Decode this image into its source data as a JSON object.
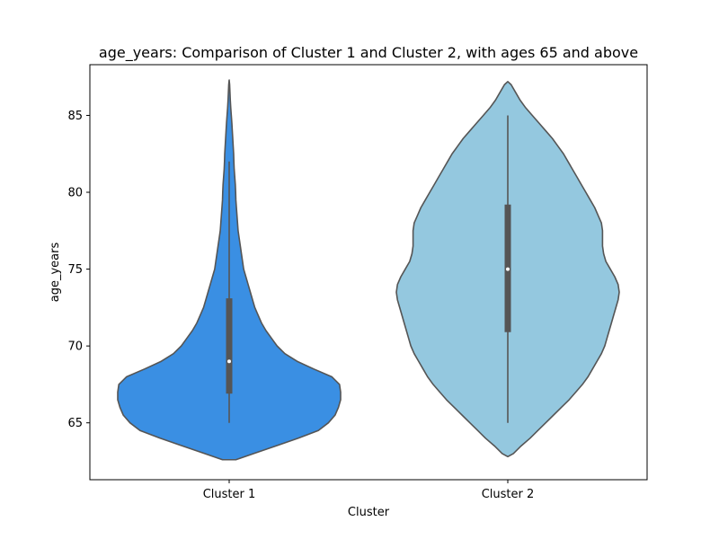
{
  "chart_data": {
    "type": "violin",
    "title": "age_years: Comparison of Cluster 1 and Cluster 2, with ages 65 and above",
    "xlabel": "Cluster",
    "ylabel": "age_years",
    "categories": [
      "Cluster 1",
      "Cluster 2"
    ],
    "ylim": [
      61.3,
      88.3
    ],
    "yticks": [
      65,
      70,
      75,
      80,
      85
    ],
    "grid": false,
    "colors": [
      "#3a8fe3",
      "#94c8df"
    ],
    "outline_color": "#555555",
    "box_color": "#555555",
    "median_color": "#ffffff",
    "series": [
      {
        "category": "Cluster 1",
        "stats": {
          "min": 65,
          "q1": 66.9,
          "median": 69,
          "q3": 73.1,
          "max": 82
        },
        "density_profile": [
          [
            62.6,
            0.06
          ],
          [
            63.0,
            0.22
          ],
          [
            63.5,
            0.42
          ],
          [
            64.0,
            0.62
          ],
          [
            64.5,
            0.8
          ],
          [
            65.0,
            0.89
          ],
          [
            65.5,
            0.95
          ],
          [
            66.0,
            0.98
          ],
          [
            66.5,
            1.0
          ],
          [
            67.0,
            1.0
          ],
          [
            67.5,
            0.99
          ],
          [
            68.0,
            0.92
          ],
          [
            68.5,
            0.76
          ],
          [
            69.0,
            0.61
          ],
          [
            69.5,
            0.5
          ],
          [
            70.0,
            0.43
          ],
          [
            70.5,
            0.38
          ],
          [
            71.0,
            0.33
          ],
          [
            71.5,
            0.29
          ],
          [
            72.0,
            0.26
          ],
          [
            72.5,
            0.23
          ],
          [
            73.0,
            0.21
          ],
          [
            73.5,
            0.19
          ],
          [
            74.0,
            0.17
          ],
          [
            74.5,
            0.15
          ],
          [
            75.0,
            0.13
          ],
          [
            75.5,
            0.12
          ],
          [
            76.0,
            0.11
          ],
          [
            76.5,
            0.1
          ],
          [
            77.0,
            0.09
          ],
          [
            77.5,
            0.08
          ],
          [
            78.0,
            0.075
          ],
          [
            78.5,
            0.07
          ],
          [
            79.0,
            0.065
          ],
          [
            79.5,
            0.06
          ],
          [
            80.0,
            0.058
          ],
          [
            80.5,
            0.055
          ],
          [
            81.0,
            0.05
          ],
          [
            81.5,
            0.045
          ],
          [
            82.0,
            0.042
          ],
          [
            82.5,
            0.04
          ],
          [
            83.0,
            0.036
          ],
          [
            83.5,
            0.032
          ],
          [
            84.0,
            0.028
          ],
          [
            84.5,
            0.024
          ],
          [
            85.0,
            0.019
          ],
          [
            85.5,
            0.014
          ],
          [
            86.0,
            0.01
          ],
          [
            86.5,
            0.007
          ],
          [
            87.0,
            0.004
          ],
          [
            87.3,
            0.0
          ]
        ]
      },
      {
        "category": "Cluster 2",
        "stats": {
          "min": 65,
          "q1": 70.9,
          "median": 75,
          "q3": 79.2,
          "max": 85
        },
        "density_profile": [
          [
            62.8,
            0.0
          ],
          [
            63.0,
            0.05
          ],
          [
            63.5,
            0.12
          ],
          [
            64.0,
            0.2
          ],
          [
            64.5,
            0.27
          ],
          [
            65.0,
            0.34
          ],
          [
            65.5,
            0.41
          ],
          [
            66.0,
            0.48
          ],
          [
            66.5,
            0.55
          ],
          [
            67.0,
            0.61
          ],
          [
            67.5,
            0.67
          ],
          [
            68.0,
            0.72
          ],
          [
            68.5,
            0.76
          ],
          [
            69.0,
            0.8
          ],
          [
            69.5,
            0.84
          ],
          [
            70.0,
            0.87
          ],
          [
            70.5,
            0.89
          ],
          [
            71.0,
            0.91
          ],
          [
            71.5,
            0.93
          ],
          [
            72.0,
            0.95
          ],
          [
            72.5,
            0.97
          ],
          [
            73.0,
            0.99
          ],
          [
            73.5,
            1.0
          ],
          [
            74.0,
            0.99
          ],
          [
            74.5,
            0.96
          ],
          [
            75.0,
            0.92
          ],
          [
            75.5,
            0.88
          ],
          [
            76.0,
            0.86
          ],
          [
            76.5,
            0.85
          ],
          [
            77.0,
            0.85
          ],
          [
            77.5,
            0.85
          ],
          [
            78.0,
            0.84
          ],
          [
            78.5,
            0.81
          ],
          [
            79.0,
            0.78
          ],
          [
            79.5,
            0.74
          ],
          [
            80.0,
            0.7
          ],
          [
            80.5,
            0.66
          ],
          [
            81.0,
            0.62
          ],
          [
            81.5,
            0.58
          ],
          [
            82.0,
            0.54
          ],
          [
            82.5,
            0.5
          ],
          [
            83.0,
            0.45
          ],
          [
            83.5,
            0.4
          ],
          [
            84.0,
            0.34
          ],
          [
            84.5,
            0.28
          ],
          [
            85.0,
            0.22
          ],
          [
            85.5,
            0.16
          ],
          [
            86.0,
            0.11
          ],
          [
            86.5,
            0.07
          ],
          [
            87.0,
            0.03
          ],
          [
            87.2,
            0.0
          ]
        ]
      }
    ]
  }
}
